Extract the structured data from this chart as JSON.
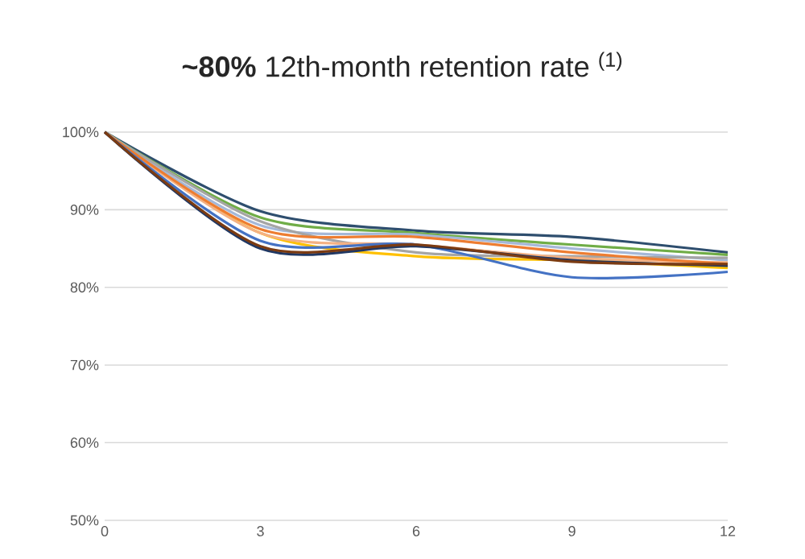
{
  "chart_data": {
    "type": "line",
    "title": "**~80%** 12th-month retention rate $^{(1)}$",
    "x": [
      0,
      3,
      6,
      9,
      12
    ],
    "xlim": [
      0,
      12
    ],
    "xticks": [
      0,
      3,
      6,
      9,
      12
    ],
    "ylim": [
      50,
      100
    ],
    "yticks": [
      {
        "value": 50,
        "label": "50%"
      },
      {
        "value": 60,
        "label": "60%"
      },
      {
        "value": 70,
        "label": "70%"
      },
      {
        "value": 80,
        "label": "80%"
      },
      {
        "value": 90,
        "label": "90%"
      },
      {
        "value": 100,
        "label": "100%"
      }
    ],
    "grid": "y",
    "marker": "none",
    "line_style": "solid",
    "legend": false,
    "series": [
      {
        "color": "#2e4e6e",
        "values": [
          100,
          89.8,
          87.3,
          86.5,
          84.5
        ]
      },
      {
        "color": "#70ad47",
        "values": [
          100,
          89.0,
          87.0,
          85.5,
          84.2
        ]
      },
      {
        "color": "#a5b8d8",
        "values": [
          100,
          88.0,
          86.8,
          85.0,
          83.5
        ]
      },
      {
        "color": "#a5a5a5",
        "values": [
          100,
          88.5,
          84.5,
          84.0,
          83.8
        ]
      },
      {
        "color": "#ffc000",
        "values": [
          100,
          87.0,
          84.0,
          83.5,
          82.5
        ]
      },
      {
        "color": "#f4b183",
        "values": [
          100,
          87.0,
          85.5,
          83.8,
          83.2
        ]
      },
      {
        "color": "#ed7d31",
        "values": [
          100,
          87.5,
          86.5,
          84.5,
          83.0
        ]
      },
      {
        "color": "#4472c4",
        "values": [
          100,
          86.0,
          85.5,
          81.3,
          82.0
        ]
      },
      {
        "color": "#203864",
        "values": [
          100,
          85.0,
          85.3,
          83.5,
          82.8
        ]
      },
      {
        "color": "#7b3b12",
        "values": [
          100,
          85.3,
          85.5,
          83.3,
          83.0
        ]
      }
    ]
  }
}
